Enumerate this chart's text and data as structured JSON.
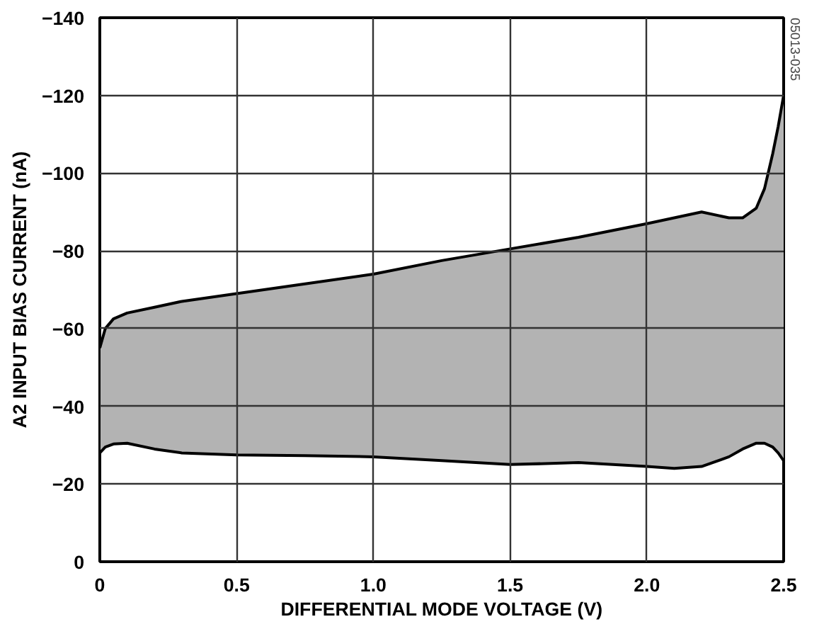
{
  "chart_data": {
    "type": "line",
    "xlabel": "DIFFERENTIAL MODE VOLTAGE (V)",
    "ylabel": "A2 INPUT BIAS CURRENT (nA)",
    "x": [
      0,
      0.02,
      0.05,
      0.1,
      0.2,
      0.3,
      0.5,
      0.75,
      1.0,
      1.25,
      1.5,
      1.75,
      2.0,
      2.1,
      2.2,
      2.3,
      2.35,
      2.4,
      2.43,
      2.46,
      2.48,
      2.5
    ],
    "series": [
      {
        "color": "#000000",
        "values": [
          -55,
          -60,
          -62.5,
          -64,
          -65.5,
          -67,
          -69,
          -71.5,
          -74,
          -77.5,
          -80.5,
          -83.5,
          -87,
          -88.5,
          -90,
          -88.5,
          -88.5,
          -91,
          -96,
          -105,
          -112,
          -120
        ],
        "lower": [
          -28,
          -29.5,
          -30.3,
          -30.5,
          -29,
          -28,
          -27.5,
          -27.3,
          -27,
          -26,
          -25,
          -25.5,
          -24.5,
          -24,
          -24.5,
          -27,
          -29,
          -30.5,
          -30.5,
          -29.5,
          -28,
          -26
        ],
        "upper": [
          -55,
          -60,
          -62.5,
          -64,
          -65.5,
          -67,
          -69,
          -71.5,
          -74,
          -77.5,
          -80.5,
          -83.5,
          -87,
          -88.5,
          -90,
          -88.5,
          -88.5,
          -91,
          -96,
          -105,
          -112,
          -120
        ]
      },
      {
        "color": "#000000",
        "values": [
          -28,
          -29.5,
          -30.3,
          -30.5,
          -29,
          -28,
          -27.5,
          -27.3,
          -27,
          -26,
          -25,
          -25.5,
          -24.5,
          -24,
          -24.5,
          -27,
          -29,
          -30.5,
          -30.5,
          -29.5,
          -28,
          -26
        ]
      }
    ],
    "xlim": [
      0,
      2.5
    ],
    "xticks": [
      0,
      0.5,
      {
        "value": 1,
        "label": "1.0"
      },
      1.5,
      {
        "value": 2,
        "label": "2.0"
      },
      2.5
    ],
    "ylim": [
      0,
      -140
    ],
    "yticks": [
      0,
      {
        "value": -20,
        "label": "−20"
      },
      {
        "value": -40,
        "label": "−40"
      },
      {
        "value": -60,
        "label": "−60"
      },
      {
        "value": -80,
        "label": "−80"
      },
      {
        "value": -100,
        "label": "−100"
      },
      {
        "value": -120,
        "label": "−120"
      },
      {
        "value": -140,
        "label": "−140"
      }
    ],
    "grid": true,
    "marker": "none",
    "line_style": "solid",
    "annotations": [
      "05013-035"
    ]
  }
}
